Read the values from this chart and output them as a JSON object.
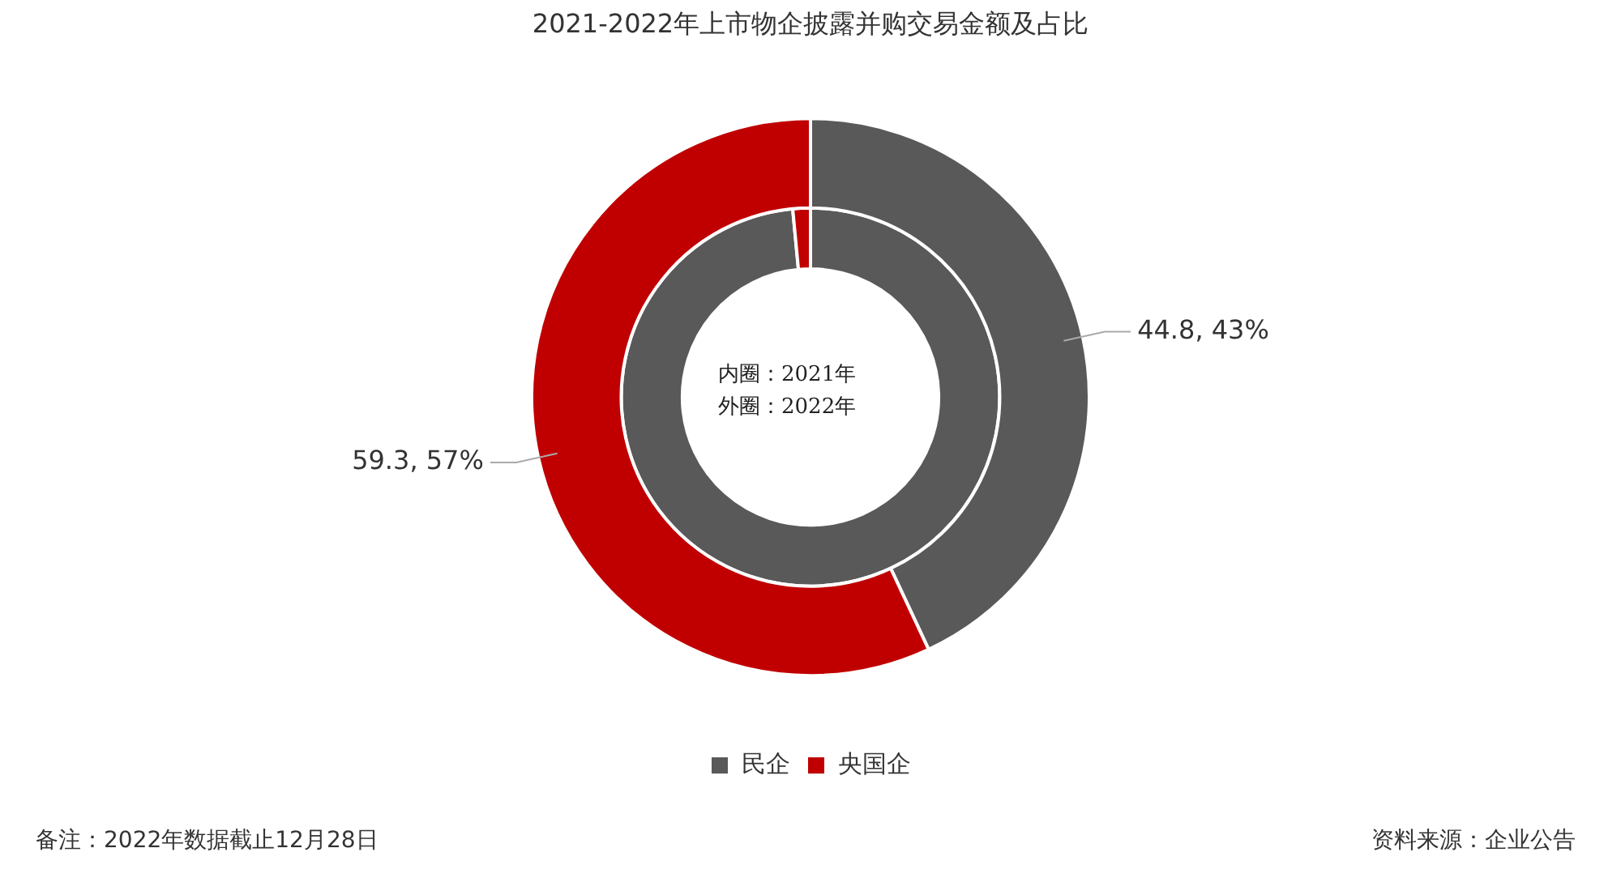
{
  "chart_data": {
    "type": "donut",
    "title": "2021-2022年上市物企披露并购交易金额及占比",
    "categories": [
      "民企",
      "央国企"
    ],
    "colors": [
      "#595959",
      "#c00000"
    ],
    "series": [
      {
        "values": [
          98.5,
          1.5
        ]
      },
      {
        "values": [
          44.8,
          59.3
        ],
        "value_labels": [
          "44.8, 43%",
          "59.3, 57%"
        ]
      }
    ],
    "legend": "bottom",
    "annotations": [
      "内圈：2021年",
      "外圈：2022年",
      "备注：2022年数据截止12月28日",
      "资料来源：企业公告"
    ]
  }
}
